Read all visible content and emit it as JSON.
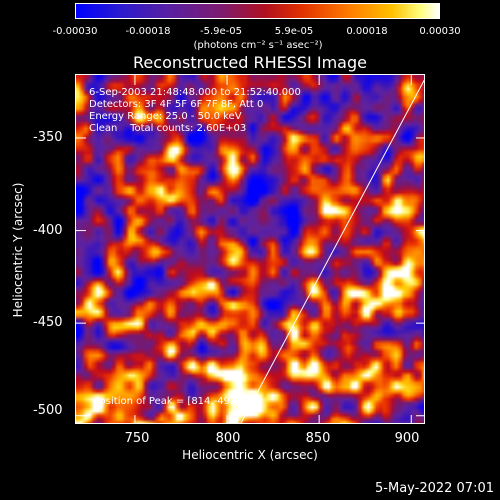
{
  "colorbar": {
    "tick_labels": [
      "-0.00030",
      "-0.00018",
      "-5.9e-05",
      "5.9e-05",
      "0.00018",
      "0.00030"
    ],
    "unit": "(photons cm⁻² s⁻¹ asec⁻²)"
  },
  "chart_data": {
    "type": "heatmap",
    "title": "Reconstructed RHESSI Image",
    "xlabel": "Heliocentric X (arcsec)",
    "ylabel": "Heliocentric Y (arcsec)",
    "xlim": [
      718,
      908
    ],
    "ylim": [
      -505,
      -316
    ],
    "x_ticks": [
      "750",
      "800",
      "850",
      "900"
    ],
    "x_tick_values": [
      750,
      800,
      850,
      900
    ],
    "y_ticks": [
      "-350",
      "-400",
      "-450",
      "-500"
    ],
    "y_tick_values": [
      -350,
      -400,
      -450,
      -500
    ],
    "value_range": [
      -0.0003,
      0.0003
    ],
    "limb_line": [
      [
        807,
        -505
      ],
      [
        908,
        -317
      ]
    ],
    "annotations": [
      "6-Sep-2003 21:48:48.000 to 21:52:40.000",
      "Detectors: 3F 4F 5F 6F 7F 8F, Att 0",
      "Energy Range: 25.0 - 50.0 keV",
      "Clean    Total counts: 2.60E+03"
    ],
    "peak_label": "Position of Peak = [814,-492]",
    "peak": [
      814,
      -492
    ]
  },
  "footer": {
    "timestamp": "5-May-2022 07:01"
  }
}
